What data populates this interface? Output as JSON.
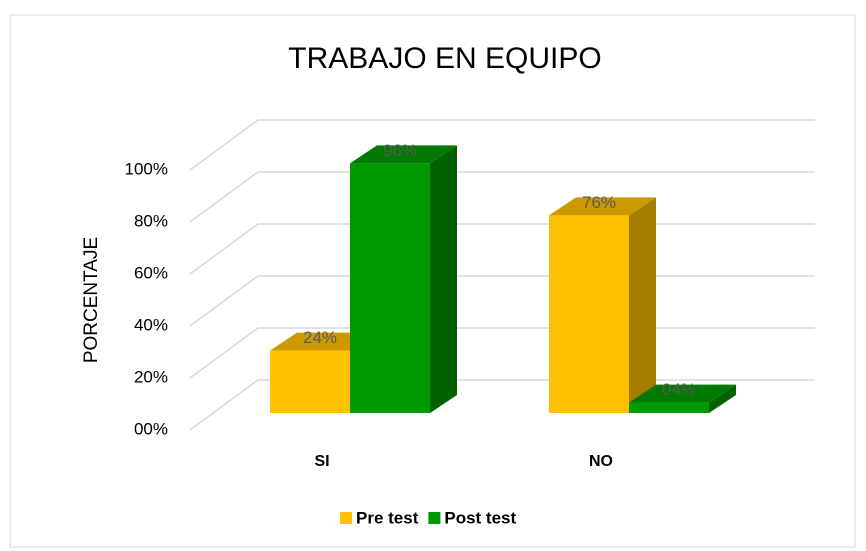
{
  "chart_data": {
    "type": "bar3d",
    "title": "TRABAJO EN EQUIPO",
    "y_label": "PORCENTAJE",
    "categories": [
      "SI",
      "NO"
    ],
    "series": [
      {
        "name": "Pre test",
        "color": "#ffc000",
        "values": [
          24,
          76
        ],
        "value_labels": [
          "24%",
          "76%"
        ]
      },
      {
        "name": "Post test",
        "color": "#009900",
        "values": [
          96,
          4
        ],
        "value_labels": [
          "96%",
          "04%"
        ]
      }
    ],
    "ylim": [
      0,
      100
    ],
    "yticks": [
      {
        "value": 0,
        "label": "00%"
      },
      {
        "value": 20,
        "label": "20%"
      },
      {
        "value": 40,
        "label": "40%"
      },
      {
        "value": 60,
        "label": "60%"
      },
      {
        "value": 80,
        "label": "80%"
      },
      {
        "value": 100,
        "label": "100%"
      }
    ],
    "grid": true,
    "legend": "bottom"
  }
}
